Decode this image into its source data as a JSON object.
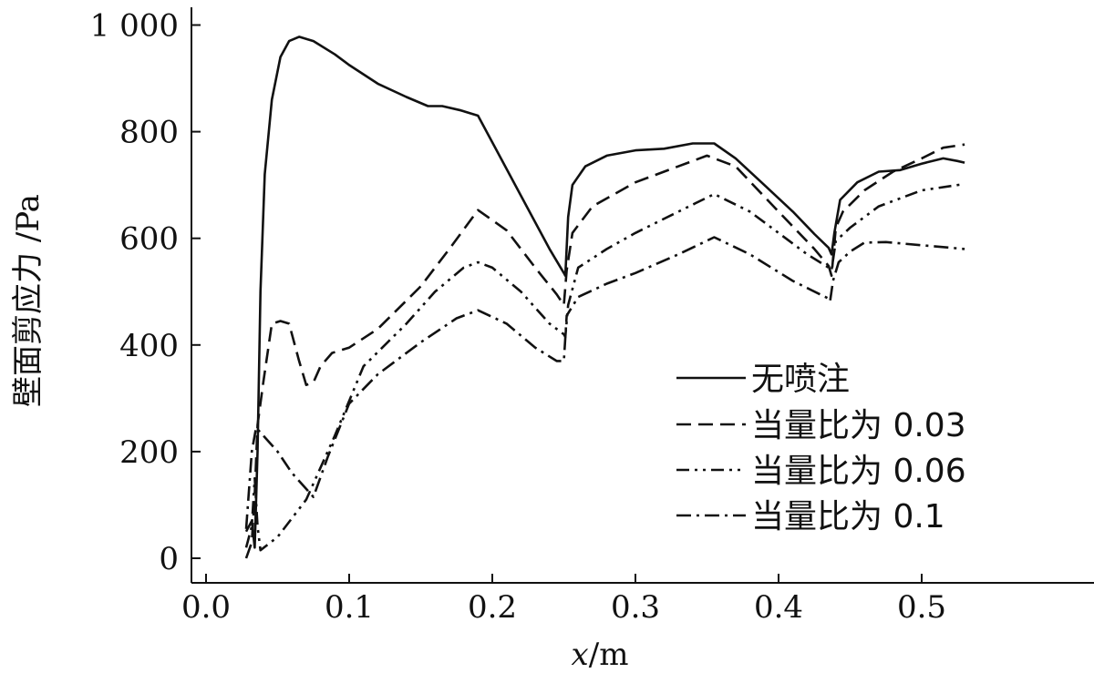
{
  "chart_data": {
    "type": "line",
    "xlabel_var": "x",
    "xlabel_sep": "/",
    "xlabel_unit": "m",
    "ylabel": "壁面剪应力  /Pa",
    "xlim": [
      0.0,
      0.6
    ],
    "ylim": [
      0,
      1000
    ],
    "x_ticks": [
      0.0,
      0.1,
      0.2,
      0.3,
      0.4,
      0.5
    ],
    "x_tick_labels": [
      "0.0",
      "0.1",
      "0.2",
      "0.3",
      "0.4",
      "0.5"
    ],
    "y_ticks": [
      0,
      200,
      400,
      600,
      800,
      1000
    ],
    "y_tick_labels": [
      "0",
      "200",
      "400",
      "600",
      "800",
      "1 000"
    ],
    "grid": false,
    "legend_position": "bottom-right",
    "series": [
      {
        "name": "无喷注",
        "dash": "solid",
        "points": [
          [
            0.028,
            50
          ],
          [
            0.032,
            70
          ],
          [
            0.034,
            20
          ],
          [
            0.036,
            200
          ],
          [
            0.038,
            500
          ],
          [
            0.041,
            720
          ],
          [
            0.046,
            860
          ],
          [
            0.052,
            940
          ],
          [
            0.058,
            970
          ],
          [
            0.065,
            978
          ],
          [
            0.075,
            970
          ],
          [
            0.09,
            945
          ],
          [
            0.1,
            925
          ],
          [
            0.12,
            890
          ],
          [
            0.14,
            865
          ],
          [
            0.155,
            848
          ],
          [
            0.165,
            848
          ],
          [
            0.178,
            840
          ],
          [
            0.19,
            830
          ],
          [
            0.2,
            780
          ],
          [
            0.22,
            680
          ],
          [
            0.24,
            580
          ],
          [
            0.25,
            535
          ],
          [
            0.251,
            530
          ],
          [
            0.253,
            640
          ],
          [
            0.256,
            700
          ],
          [
            0.265,
            735
          ],
          [
            0.28,
            755
          ],
          [
            0.3,
            765
          ],
          [
            0.32,
            768
          ],
          [
            0.34,
            778
          ],
          [
            0.355,
            778
          ],
          [
            0.37,
            750
          ],
          [
            0.39,
            700
          ],
          [
            0.41,
            650
          ],
          [
            0.425,
            608
          ],
          [
            0.435,
            582
          ],
          [
            0.437,
            570
          ],
          [
            0.439,
            610
          ],
          [
            0.443,
            672
          ],
          [
            0.455,
            705
          ],
          [
            0.47,
            725
          ],
          [
            0.485,
            728
          ],
          [
            0.5,
            740
          ],
          [
            0.515,
            750
          ],
          [
            0.525,
            745
          ],
          [
            0.53,
            742
          ]
        ]
      },
      {
        "name": "当量比为 0.03",
        "dash": "dashed",
        "points": [
          [
            0.028,
            0
          ],
          [
            0.032,
            30
          ],
          [
            0.034,
            120
          ],
          [
            0.036,
            250
          ],
          [
            0.04,
            330
          ],
          [
            0.046,
            440
          ],
          [
            0.052,
            445
          ],
          [
            0.058,
            440
          ],
          [
            0.065,
            370
          ],
          [
            0.07,
            325
          ],
          [
            0.075,
            330
          ],
          [
            0.08,
            360
          ],
          [
            0.088,
            385
          ],
          [
            0.1,
            395
          ],
          [
            0.12,
            430
          ],
          [
            0.15,
            510
          ],
          [
            0.17,
            580
          ],
          [
            0.19,
            653
          ],
          [
            0.21,
            615
          ],
          [
            0.23,
            545
          ],
          [
            0.245,
            495
          ],
          [
            0.25,
            475
          ],
          [
            0.252,
            540
          ],
          [
            0.256,
            610
          ],
          [
            0.27,
            660
          ],
          [
            0.3,
            705
          ],
          [
            0.32,
            725
          ],
          [
            0.35,
            755
          ],
          [
            0.37,
            735
          ],
          [
            0.4,
            650
          ],
          [
            0.425,
            580
          ],
          [
            0.435,
            548
          ],
          [
            0.437,
            530
          ],
          [
            0.44,
            620
          ],
          [
            0.445,
            650
          ],
          [
            0.46,
            690
          ],
          [
            0.48,
            725
          ],
          [
            0.5,
            750
          ],
          [
            0.515,
            770
          ],
          [
            0.53,
            776
          ]
        ]
      },
      {
        "name": "当量比为 0.06",
        "dash": "dash-dot-dot",
        "points": [
          [
            0.028,
            20
          ],
          [
            0.032,
            60
          ],
          [
            0.034,
            150
          ],
          [
            0.036,
            60
          ],
          [
            0.038,
            15
          ],
          [
            0.05,
            40
          ],
          [
            0.07,
            110
          ],
          [
            0.09,
            230
          ],
          [
            0.11,
            360
          ],
          [
            0.14,
            440
          ],
          [
            0.16,
            500
          ],
          [
            0.18,
            545
          ],
          [
            0.19,
            555
          ],
          [
            0.2,
            545
          ],
          [
            0.22,
            500
          ],
          [
            0.24,
            440
          ],
          [
            0.25,
            420
          ],
          [
            0.251,
            415
          ],
          [
            0.253,
            475
          ],
          [
            0.26,
            545
          ],
          [
            0.28,
            580
          ],
          [
            0.3,
            610
          ],
          [
            0.33,
            650
          ],
          [
            0.355,
            683
          ],
          [
            0.38,
            650
          ],
          [
            0.4,
            610
          ],
          [
            0.42,
            570
          ],
          [
            0.435,
            545
          ],
          [
            0.437,
            540
          ],
          [
            0.44,
            595
          ],
          [
            0.45,
            620
          ],
          [
            0.47,
            660
          ],
          [
            0.5,
            690
          ],
          [
            0.53,
            702
          ]
        ]
      },
      {
        "name": "当量比为 0.1",
        "dash": "dash-dot",
        "points": [
          [
            0.028,
            55
          ],
          [
            0.032,
            200
          ],
          [
            0.035,
            245
          ],
          [
            0.04,
            230
          ],
          [
            0.05,
            200
          ],
          [
            0.06,
            160
          ],
          [
            0.075,
            115
          ],
          [
            0.085,
            190
          ],
          [
            0.1,
            290
          ],
          [
            0.12,
            345
          ],
          [
            0.15,
            405
          ],
          [
            0.175,
            450
          ],
          [
            0.19,
            465
          ],
          [
            0.21,
            440
          ],
          [
            0.23,
            395
          ],
          [
            0.245,
            370
          ],
          [
            0.25,
            370
          ],
          [
            0.252,
            455
          ],
          [
            0.26,
            490
          ],
          [
            0.28,
            515
          ],
          [
            0.3,
            535
          ],
          [
            0.33,
            570
          ],
          [
            0.355,
            602
          ],
          [
            0.38,
            570
          ],
          [
            0.41,
            520
          ],
          [
            0.435,
            487
          ],
          [
            0.436,
            482
          ],
          [
            0.438,
            520
          ],
          [
            0.442,
            555
          ],
          [
            0.45,
            575
          ],
          [
            0.46,
            592
          ],
          [
            0.475,
            593
          ],
          [
            0.5,
            587
          ],
          [
            0.53,
            580
          ]
        ]
      }
    ]
  }
}
